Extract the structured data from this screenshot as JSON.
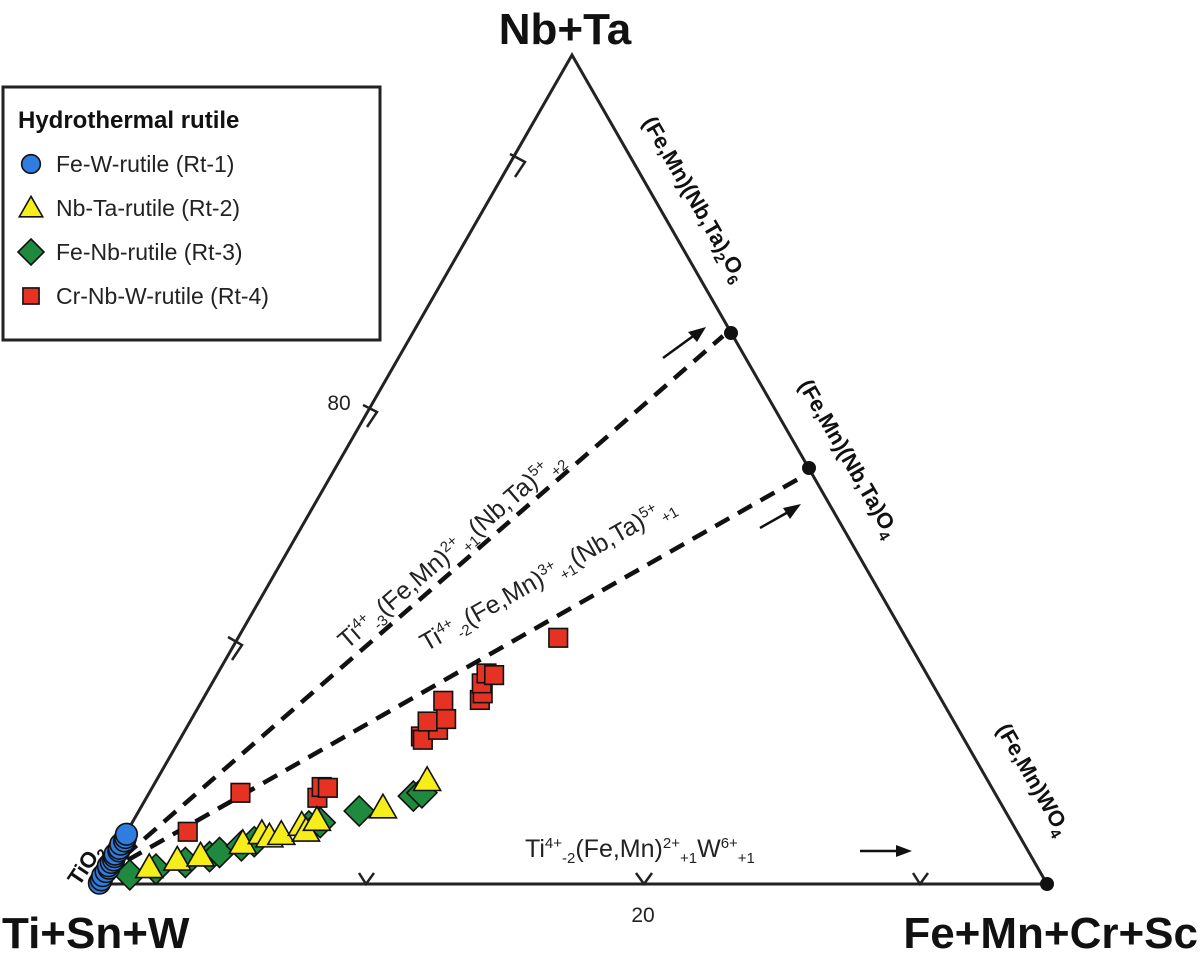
{
  "chart_data": {
    "type": "ternary-scatter",
    "apices": {
      "top": "Nb+Ta",
      "left": "Ti+Sn+W",
      "right": "Fe+Mn+Cr+Sc"
    },
    "tick_labels": [
      "80",
      "20"
    ],
    "legend": {
      "title": "Hydrothermal rutile",
      "position": "top-left",
      "entries": [
        {
          "label": "Fe-W-rutile (Rt-1)",
          "marker": "circle",
          "color": "#2f7de1"
        },
        {
          "label": "Nb-Ta-rutile (Rt-2)",
          "marker": "triangle",
          "color": "#f5ee1a"
        },
        {
          "label": "Fe-Nb-rutile (Rt-3)",
          "marker": "diamond",
          "color": "#1f8a3e"
        },
        {
          "label": "Cr-Nb-W-rutile (Rt-4)",
          "marker": "square",
          "color": "#e63222"
        }
      ]
    },
    "end_members": [
      {
        "name": "TiO2",
        "parts": [
          [
            "TiO",
            ""
          ],
          [
            "2",
            "sub"
          ]
        ],
        "comp": [
          0,
          100
        ]
      },
      {
        "name": "(Fe,Mn)(Nb,Ta)2O6",
        "parts": [
          [
            "(Fe,Mn)(Nb,Ta)",
            ""
          ],
          [
            "2",
            "sub"
          ],
          [
            "O",
            ""
          ],
          [
            "6",
            "sub"
          ]
        ],
        "comp": [
          66.7,
          33.3
        ]
      },
      {
        "name": "(Fe,Mn)(Nb,Ta)O4",
        "parts": [
          [
            "(Fe,Mn)(Nb,Ta)O",
            ""
          ],
          [
            "4",
            "sub"
          ]
        ],
        "comp": [
          50,
          50
        ]
      },
      {
        "name": "(Fe,Mn)WO4",
        "parts": [
          [
            "(Fe,Mn)WO",
            ""
          ],
          [
            "4",
            "sub"
          ]
        ],
        "comp": [
          0,
          100
        ]
      }
    ],
    "substitution_vectors": [
      {
        "parts": [
          [
            "Ti",
            ""
          ],
          [
            "4+",
            "sup"
          ],
          [
            "-3",
            "sub"
          ],
          [
            "(Fe,Mn)",
            ""
          ],
          [
            "2+",
            "sup"
          ],
          [
            "+1",
            "sub"
          ],
          [
            "(Nb,Ta)",
            ""
          ],
          [
            "5+",
            "sup"
          ],
          [
            "+2",
            "sub"
          ]
        ],
        "from": [
          0,
          0
        ],
        "to": [
          66.7,
          33.3
        ],
        "dashed": true
      },
      {
        "parts": [
          [
            "Ti",
            ""
          ],
          [
            "4+",
            "sup"
          ],
          [
            "-2",
            "sub"
          ],
          [
            "(Fe,Mn)",
            ""
          ],
          [
            "3+",
            "sup"
          ],
          [
            "+1",
            "sub"
          ],
          [
            "(Nb,Ta)",
            ""
          ],
          [
            "5+",
            "sup"
          ],
          [
            "+1",
            "sub"
          ]
        ],
        "from": [
          0,
          0
        ],
        "to": [
          50,
          50
        ],
        "dashed": true
      },
      {
        "parts": [
          [
            "Ti",
            ""
          ],
          [
            "4+",
            "sup"
          ],
          [
            "-2",
            "sub"
          ],
          [
            "(Fe,Mn)",
            ""
          ],
          [
            "2+",
            "sup"
          ],
          [
            "+1",
            "sub"
          ],
          [
            "W",
            ""
          ],
          [
            "6+",
            "sup"
          ],
          [
            "+1",
            "sub"
          ]
        ],
        "from": [
          0,
          0
        ],
        "to": [
          0,
          100
        ],
        "dashed": false
      }
    ],
    "series": [
      {
        "name": "Fe-W-rutile (Rt-1)",
        "marker": "circle",
        "color": "#2f7de1",
        "points": [
          [
            0.2,
            0.1
          ],
          [
            0.2,
            0.5
          ],
          [
            0.1,
            1.0
          ],
          [
            0.2,
            1.5
          ],
          [
            0.3,
            1.9
          ],
          [
            0.1,
            2.2
          ],
          [
            0.2,
            2.6
          ],
          [
            0.3,
            2.9
          ],
          [
            0.2,
            3.3
          ],
          [
            0.1,
            3.6
          ],
          [
            0.3,
            4.0
          ],
          [
            0.2,
            4.3
          ],
          [
            0.1,
            4.8
          ],
          [
            0.3,
            5.2
          ],
          [
            0.2,
            5.6
          ],
          [
            0.1,
            6.0
          ]
        ]
      },
      {
        "name": "Nb-Ta-rutile (Rt-2)",
        "marker": "triangle",
        "color": "#f5ee1a",
        "points": [
          [
            4.5,
            2.0
          ],
          [
            7.0,
            2.9
          ],
          [
            9.2,
            3.4
          ],
          [
            12.9,
            4.9
          ],
          [
            14.3,
            6.1
          ],
          [
            15.3,
            5.7
          ],
          [
            16.4,
            6.0
          ],
          [
            18.0,
            7.1
          ],
          [
            18.8,
            6.4
          ],
          [
            19.3,
            7.7
          ],
          [
            25.5,
            9.2
          ],
          [
            28.5,
            12.5
          ]
        ]
      },
      {
        "name": "Fe-Nb-rutile (Rt-3)",
        "marker": "diamond",
        "color": "#1f8a3e",
        "points": [
          [
            2.9,
            1.1
          ],
          [
            5.3,
            1.8
          ],
          [
            8.0,
            2.6
          ],
          [
            10.2,
            3.3
          ],
          [
            11.0,
            3.8
          ],
          [
            12.9,
            4.6
          ],
          [
            14.0,
            5.1
          ],
          [
            18.8,
            7.0
          ],
          [
            19.8,
            7.4
          ],
          [
            23.2,
            8.8
          ],
          [
            28.0,
            10.6
          ],
          [
            28.7,
            11.0
          ]
        ]
      },
      {
        "name": "Cr-Nb-W-rutile (Rt-4)",
        "marker": "square",
        "color": "#e63222",
        "points": [
          [
            6.4,
            6.3
          ],
          [
            9.6,
            11.0
          ],
          [
            18.0,
            10.4
          ],
          [
            17.8,
            11.7
          ],
          [
            18.5,
            11.6
          ],
          [
            25.2,
            17.8
          ],
          [
            25.6,
            17.4
          ],
          [
            26.6,
            18.6
          ],
          [
            25.0,
            19.6
          ],
          [
            25.4,
            22.1
          ],
          [
            26.8,
            19.9
          ],
          [
            29.2,
            22.2
          ],
          [
            29.1,
            23.0
          ],
          [
            28.4,
            24.2
          ],
          [
            28.3,
            25.4
          ],
          [
            29.2,
            25.2
          ],
          [
            33.7,
            29.7
          ]
        ]
      }
    ]
  }
}
